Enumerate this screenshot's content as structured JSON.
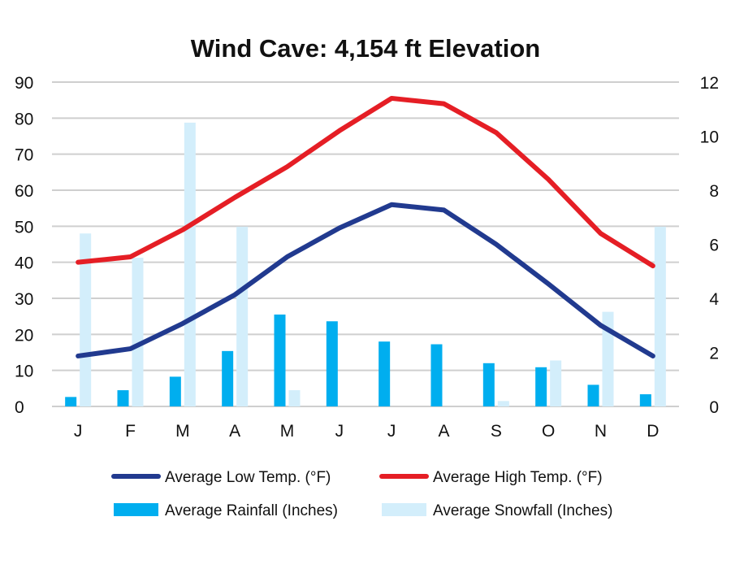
{
  "chart_data": {
    "type": "bar+line",
    "title": "Wind Cave: 4,154 ft Elevation",
    "categories": [
      "J",
      "F",
      "M",
      "A",
      "M",
      "J",
      "J",
      "A",
      "S",
      "O",
      "N",
      "D"
    ],
    "y_left": {
      "min": 0,
      "max": 90,
      "ticks": [
        0,
        10,
        20,
        30,
        40,
        50,
        60,
        70,
        80,
        90
      ]
    },
    "y_right": {
      "min": 0,
      "max": 12,
      "ticks": [
        0,
        2,
        4,
        6,
        8,
        10,
        12
      ]
    },
    "grid": true,
    "legend_position": "bottom",
    "series": [
      {
        "name": "Average Low Temp. (°F)",
        "kind": "line",
        "axis": "left",
        "color": "#213a8f",
        "values": [
          14,
          16,
          23,
          31,
          41.5,
          49.5,
          56,
          54.5,
          45,
          34,
          22.5,
          14
        ]
      },
      {
        "name": "Average High Temp. (°F)",
        "kind": "line",
        "axis": "left",
        "color": "#e51e25",
        "values": [
          40,
          41.5,
          49,
          58,
          66.5,
          76.5,
          85.5,
          84,
          76,
          63,
          48,
          39
        ]
      },
      {
        "name": "Average Rainfall (Inches)",
        "kind": "bar",
        "axis": "right",
        "color": "#00aeef",
        "values": [
          0.35,
          0.6,
          1.1,
          2.05,
          3.4,
          3.15,
          2.4,
          2.3,
          1.6,
          1.45,
          0.8,
          0.45
        ]
      },
      {
        "name": "Average Snowfall (Inches)",
        "kind": "bar",
        "axis": "right",
        "color": "#d3eefb",
        "values": [
          6.4,
          5.5,
          10.5,
          6.65,
          0.6,
          0,
          0,
          0,
          0.2,
          1.7,
          3.5,
          6.65
        ]
      }
    ]
  }
}
